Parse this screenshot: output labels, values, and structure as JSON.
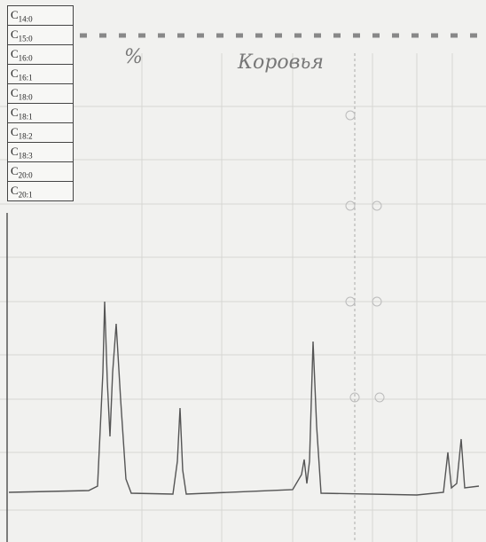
{
  "table": {
    "rows": [
      {
        "base": "C",
        "sub": "14:0"
      },
      {
        "base": "C",
        "sub": "15:0"
      },
      {
        "base": "C",
        "sub": "16:0"
      },
      {
        "base": "C",
        "sub": "16:1"
      },
      {
        "base": "C",
        "sub": "18:0"
      },
      {
        "base": "C",
        "sub": "18:1"
      },
      {
        "base": "C",
        "sub": "18:2"
      },
      {
        "base": "C",
        "sub": "18:3"
      },
      {
        "base": "C",
        "sub": "20:0"
      },
      {
        "base": "C",
        "sub": "20:1"
      }
    ]
  },
  "notes": {
    "unit": "%",
    "sample": "Коровья"
  }
}
